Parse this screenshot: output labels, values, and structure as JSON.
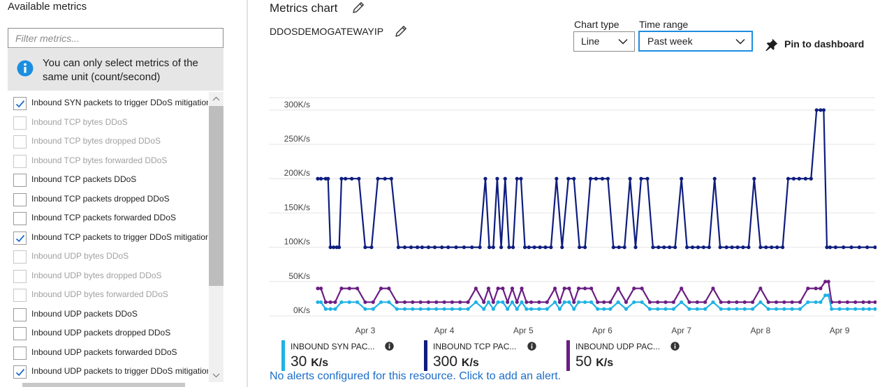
{
  "left_panel": {
    "title": "Available metrics",
    "filter_placeholder": "Filter metrics...",
    "info_text": "You can only select metrics of the same unit (count/second)",
    "metrics": [
      {
        "label": "Inbound SYN packets to trigger DDoS mitigation",
        "checked": true,
        "enabled": true
      },
      {
        "label": "Inbound TCP bytes DDoS",
        "checked": false,
        "enabled": false
      },
      {
        "label": "Inbound TCP bytes dropped DDoS",
        "checked": false,
        "enabled": false
      },
      {
        "label": "Inbound TCP bytes forwarded DDoS",
        "checked": false,
        "enabled": false
      },
      {
        "label": "Inbound TCP packets DDoS",
        "checked": false,
        "enabled": true
      },
      {
        "label": "Inbound TCP packets dropped DDoS",
        "checked": false,
        "enabled": true
      },
      {
        "label": "Inbound TCP packets forwarded DDoS",
        "checked": false,
        "enabled": true
      },
      {
        "label": "Inbound TCP packets to trigger DDoS mitigation",
        "checked": true,
        "enabled": true
      },
      {
        "label": "Inbound UDP bytes DDoS",
        "checked": false,
        "enabled": false
      },
      {
        "label": "Inbound UDP bytes dropped DDoS",
        "checked": false,
        "enabled": false
      },
      {
        "label": "Inbound UDP bytes forwarded DDoS",
        "checked": false,
        "enabled": false
      },
      {
        "label": "Inbound UDP packets DDoS",
        "checked": false,
        "enabled": true
      },
      {
        "label": "Inbound UDP packets dropped DDoS",
        "checked": false,
        "enabled": true
      },
      {
        "label": "Inbound UDP packets forwarded DDoS",
        "checked": false,
        "enabled": true
      },
      {
        "label": "Inbound UDP packets to trigger DDoS mitigation",
        "checked": true,
        "enabled": true
      }
    ]
  },
  "header": {
    "title": "Metrics chart",
    "resource": "DDOSDEMOGATEWAYIP",
    "chart_type_label": "Chart type",
    "chart_type_value": "Line",
    "time_range_label": "Time range",
    "time_range_value": "Past week",
    "pin_label": "Pin to dashboard"
  },
  "colors": {
    "syn": "#1fb2e6",
    "tcp": "#0e1d7e",
    "udp": "#6b1d83",
    "accent": "#1c8ee0",
    "link": "#1c6dc7"
  },
  "chart_data": {
    "type": "line",
    "title": "",
    "xlabel": "",
    "ylabel": "",
    "y_ticks": [
      "0K/s",
      "50K/s",
      "100K/s",
      "150K/s",
      "200K/s",
      "250K/s",
      "300K/s"
    ],
    "ylim": [
      0,
      300
    ],
    "x_ticks": [
      "Apr 3",
      "Apr 4",
      "Apr 5",
      "Apr 6",
      "Apr 7",
      "Apr 8",
      "Apr 9"
    ],
    "xlim": [
      2.4,
      9.45
    ],
    "grid": true,
    "legend_position": "bottom",
    "series": [
      {
        "name": "INBOUND TCP PAC...",
        "color": "#0e1d7e",
        "x": [
          2.4,
          2.44,
          2.5,
          2.53,
          2.56,
          2.6,
          2.64,
          2.67,
          2.7,
          2.75,
          2.83,
          2.92,
          3.0,
          3.08,
          3.16,
          3.25,
          3.33,
          3.42,
          3.5,
          3.58,
          3.66,
          3.72,
          3.8,
          3.88,
          3.97,
          4.05,
          4.15,
          4.25,
          4.35,
          4.45,
          4.52,
          4.57,
          4.62,
          4.67,
          4.72,
          4.77,
          4.82,
          4.87,
          4.92,
          4.97,
          5.02,
          5.07,
          5.14,
          5.21,
          5.28,
          5.35,
          5.42,
          5.49,
          5.57,
          5.64,
          5.71,
          5.78,
          5.85,
          5.92,
          6.0,
          6.07,
          6.14,
          6.21,
          6.28,
          6.35,
          6.42,
          6.49,
          6.57,
          6.64,
          6.71,
          6.78,
          6.85,
          6.92,
          7.0,
          7.07,
          7.14,
          7.21,
          7.28,
          7.35,
          7.42,
          7.49,
          7.57,
          7.64,
          7.71,
          7.78,
          7.85,
          7.92,
          8.0,
          8.07,
          8.14,
          8.21,
          8.28,
          8.35,
          8.42,
          8.49,
          8.57,
          8.64,
          8.71,
          8.76,
          8.8,
          8.84,
          8.88,
          8.95,
          9.05,
          9.15,
          9.25,
          9.35,
          9.45
        ],
        "values": [
          200,
          200,
          200,
          200,
          100,
          100,
          100,
          100,
          200,
          200,
          200,
          200,
          100,
          100,
          200,
          200,
          200,
          100,
          100,
          100,
          100,
          100,
          100,
          100,
          100,
          100,
          100,
          100,
          100,
          100,
          200,
          100,
          100,
          200,
          100,
          200,
          100,
          100,
          200,
          200,
          100,
          100,
          100,
          100,
          100,
          100,
          200,
          100,
          200,
          200,
          100,
          100,
          200,
          200,
          200,
          200,
          100,
          100,
          100,
          200,
          100,
          200,
          200,
          100,
          100,
          100,
          100,
          100,
          200,
          100,
          100,
          100,
          100,
          100,
          200,
          100,
          100,
          100,
          100,
          100,
          100,
          200,
          100,
          100,
          100,
          100,
          100,
          200,
          200,
          200,
          200,
          200,
          300,
          300,
          300,
          100,
          100,
          100,
          100,
          100,
          100,
          100,
          100
        ]
      },
      {
        "name": "INBOUND UDP PAC...",
        "color": "#6b1d83",
        "x": [
          2.4,
          2.44,
          2.5,
          2.56,
          2.62,
          2.7,
          2.8,
          2.9,
          3.0,
          3.1,
          3.2,
          3.3,
          3.4,
          3.5,
          3.6,
          3.7,
          3.8,
          3.9,
          4.0,
          4.1,
          4.2,
          4.3,
          4.4,
          4.5,
          4.56,
          4.62,
          4.68,
          4.74,
          4.8,
          4.86,
          4.92,
          4.98,
          5.04,
          5.1,
          5.2,
          5.3,
          5.4,
          5.46,
          5.52,
          5.58,
          5.64,
          5.7,
          5.78,
          5.86,
          5.94,
          6.02,
          6.1,
          6.2,
          6.3,
          6.4,
          6.5,
          6.6,
          6.7,
          6.8,
          6.9,
          7.0,
          7.1,
          7.2,
          7.3,
          7.4,
          7.5,
          7.6,
          7.7,
          7.8,
          7.9,
          8.0,
          8.1,
          8.2,
          8.3,
          8.4,
          8.5,
          8.6,
          8.7,
          8.76,
          8.82,
          8.86,
          8.9,
          9.0,
          9.1,
          9.2,
          9.3,
          9.45
        ],
        "values": [
          40,
          40,
          20,
          20,
          20,
          40,
          40,
          40,
          20,
          20,
          40,
          40,
          20,
          20,
          20,
          20,
          20,
          20,
          20,
          20,
          20,
          20,
          40,
          20,
          40,
          20,
          40,
          40,
          20,
          40,
          20,
          40,
          20,
          20,
          20,
          20,
          40,
          20,
          40,
          40,
          20,
          40,
          40,
          40,
          20,
          20,
          20,
          40,
          20,
          40,
          40,
          20,
          20,
          20,
          20,
          40,
          20,
          20,
          20,
          40,
          20,
          20,
          20,
          20,
          20,
          40,
          20,
          20,
          20,
          20,
          20,
          40,
          40,
          40,
          50,
          50,
          20,
          20,
          20,
          20,
          20,
          20
        ]
      },
      {
        "name": "INBOUND SYN PAC...",
        "color": "#1fb2e6",
        "x": [
          2.4,
          2.44,
          2.5,
          2.56,
          2.62,
          2.7,
          2.8,
          2.9,
          3.0,
          3.1,
          3.2,
          3.3,
          3.4,
          3.5,
          3.6,
          3.7,
          3.8,
          3.9,
          4.0,
          4.1,
          4.2,
          4.3,
          4.4,
          4.5,
          4.56,
          4.62,
          4.68,
          4.74,
          4.8,
          4.86,
          4.92,
          4.98,
          5.04,
          5.1,
          5.2,
          5.3,
          5.4,
          5.46,
          5.52,
          5.58,
          5.64,
          5.7,
          5.78,
          5.86,
          5.94,
          6.02,
          6.1,
          6.2,
          6.3,
          6.4,
          6.5,
          6.6,
          6.7,
          6.8,
          6.9,
          7.0,
          7.1,
          7.2,
          7.3,
          7.4,
          7.5,
          7.6,
          7.7,
          7.8,
          7.9,
          8.0,
          8.1,
          8.2,
          8.3,
          8.4,
          8.5,
          8.6,
          8.7,
          8.76,
          8.82,
          8.86,
          8.9,
          9.0,
          9.1,
          9.2,
          9.3,
          9.45
        ],
        "values": [
          20,
          20,
          10,
          10,
          10,
          20,
          20,
          20,
          10,
          10,
          20,
          20,
          10,
          10,
          10,
          10,
          10,
          10,
          10,
          10,
          10,
          10,
          20,
          10,
          20,
          10,
          20,
          20,
          10,
          20,
          10,
          20,
          10,
          10,
          10,
          10,
          20,
          10,
          20,
          20,
          10,
          20,
          20,
          20,
          10,
          10,
          10,
          20,
          10,
          20,
          20,
          10,
          10,
          10,
          10,
          20,
          10,
          10,
          10,
          20,
          10,
          10,
          10,
          10,
          10,
          20,
          10,
          10,
          10,
          10,
          10,
          20,
          20,
          20,
          30,
          30,
          10,
          10,
          10,
          10,
          10,
          10
        ]
      }
    ]
  },
  "legend": [
    {
      "name": "INBOUND SYN PAC...",
      "value": "30",
      "unit": "K/s",
      "color": "#1fb2e6"
    },
    {
      "name": "INBOUND TCP PAC...",
      "value": "300",
      "unit": "K/s",
      "color": "#0e1d7e"
    },
    {
      "name": "INBOUND UDP PAC...",
      "value": "50",
      "unit": "K/s",
      "color": "#6b1d83"
    }
  ],
  "alert_text": "No alerts configured for this resource. Click to add an alert."
}
